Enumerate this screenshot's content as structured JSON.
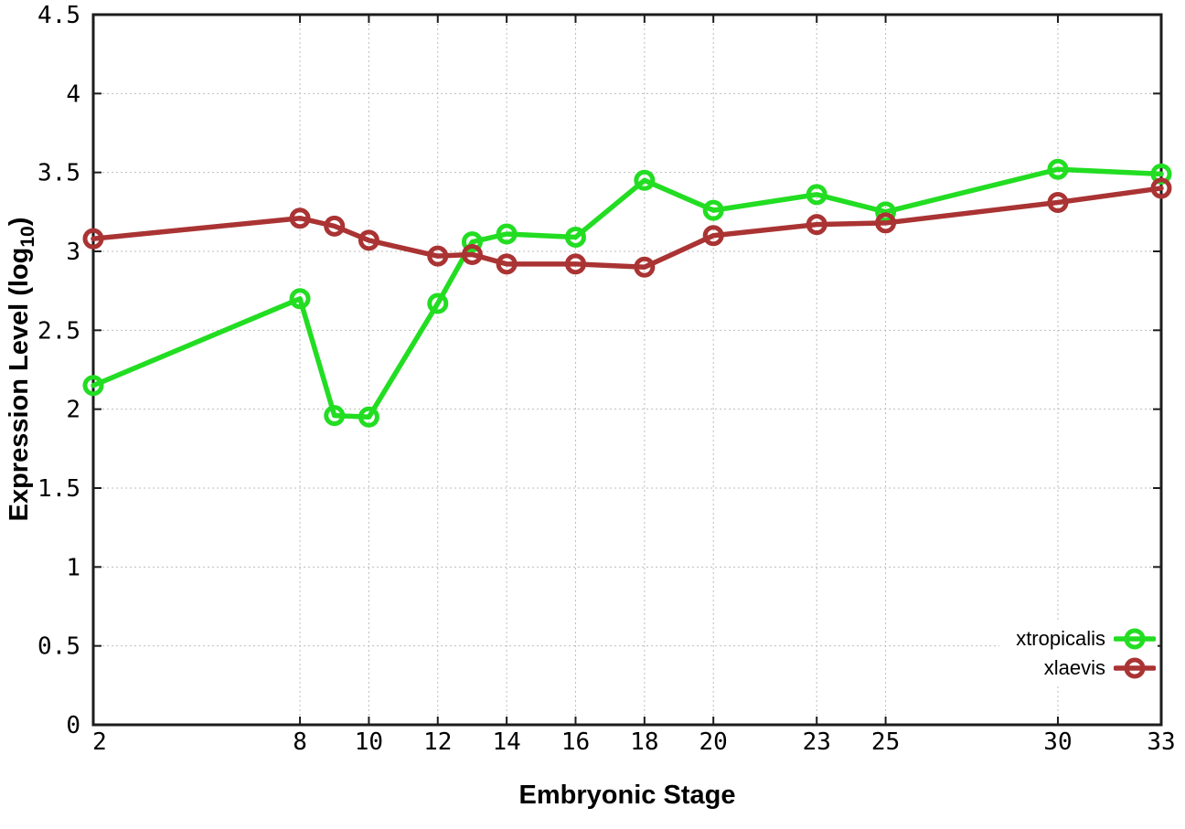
{
  "chart_data": {
    "type": "line",
    "title": "",
    "xlabel": "Embryonic Stage",
    "ylabel": "Expression Level (log10)",
    "ylabel_parts": {
      "main": "Expression Level (log",
      "sub": "10",
      "close": ")"
    },
    "xlim": [
      2,
      33
    ],
    "ylim": [
      0,
      4.5
    ],
    "grid": true,
    "legend_position": "inside-bottom-right",
    "x": [
      2,
      8,
      9,
      10,
      12,
      13,
      14,
      16,
      18,
      20,
      23,
      25,
      30,
      33
    ],
    "x_ticks": {
      "values": [
        2,
        8,
        10,
        12,
        14,
        16,
        18,
        20,
        23,
        25,
        30,
        33
      ],
      "labels": [
        "2",
        "8",
        "10",
        "12",
        "14",
        "16",
        "18",
        "20",
        "23",
        "25",
        "30",
        "33"
      ]
    },
    "y_ticks": {
      "values": [
        0,
        0.5,
        1,
        1.5,
        2,
        2.5,
        3,
        3.5,
        4,
        4.5
      ],
      "labels": [
        "0",
        "0.5",
        "1",
        "1.5",
        "2",
        "2.5",
        "3",
        "3.5",
        "4",
        "4.5"
      ]
    },
    "series": [
      {
        "name": "xtropicalis",
        "color": "#22dd22",
        "values": [
          2.15,
          2.7,
          1.96,
          1.95,
          2.67,
          3.06,
          3.11,
          3.09,
          3.45,
          3.26,
          3.36,
          3.25,
          3.52,
          3.49
        ]
      },
      {
        "name": "xlaevis",
        "color": "#aa3333",
        "values": [
          3.08,
          3.21,
          3.16,
          3.07,
          2.97,
          2.98,
          2.92,
          2.92,
          2.9,
          3.1,
          3.17,
          3.18,
          3.31,
          3.4
        ]
      }
    ]
  }
}
